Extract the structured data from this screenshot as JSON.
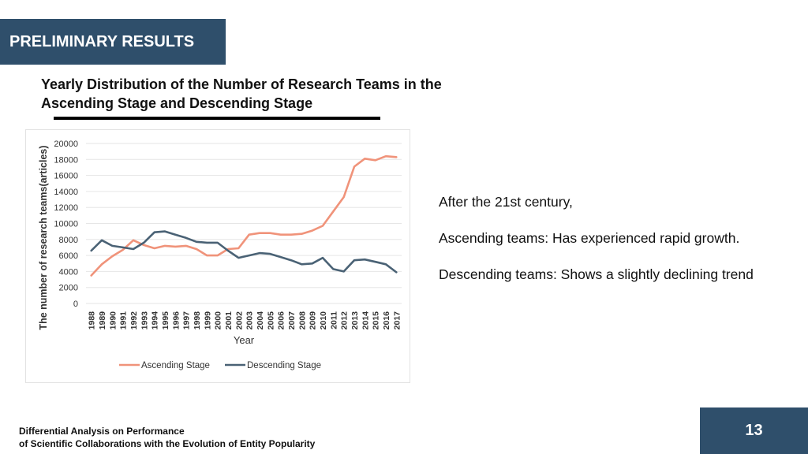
{
  "slide": {
    "section_title": "PRELIMINARY RESULTS",
    "heading_line1": "Yearly Distribution of the Number of Research Teams in the",
    "heading_line2": "Ascending Stage and Descending Stage",
    "notes": {
      "intro": "After the 21st century,",
      "ascending": "Ascending teams:  Has experienced rapid growth.",
      "descending": "Descending teams:  Shows a slightly declining trend"
    },
    "footer_line1": "Differential Analysis on Performance",
    "footer_line2": "of Scientific Collaborations with the Evolution of Entity Popularity",
    "page_number": "13"
  },
  "chart_data": {
    "type": "line",
    "title": "",
    "xlabel": "Year",
    "ylabel": "The number of research teams(articles)",
    "ylim": [
      0,
      20000
    ],
    "yticks": [
      0,
      2000,
      4000,
      6000,
      8000,
      10000,
      12000,
      14000,
      16000,
      18000,
      20000
    ],
    "grid": true,
    "legend_position": "bottom",
    "x": [
      "1988",
      "1989",
      "1990",
      "1991",
      "1992",
      "1993",
      "1994",
      "1995",
      "1996",
      "1997",
      "1998",
      "1999",
      "2000",
      "2001",
      "2002",
      "2003",
      "2004",
      "2005",
      "2006",
      "2007",
      "2008",
      "2009",
      "2010",
      "2011",
      "2012",
      "2013",
      "2014",
      "2015",
      "2016",
      "2017"
    ],
    "series": [
      {
        "name": "Ascending Stage",
        "color": "#f0937a",
        "values": [
          3500,
          4900,
          5900,
          6700,
          7900,
          7300,
          6900,
          7200,
          7100,
          7200,
          6800,
          6000,
          6000,
          6800,
          6900,
          8600,
          8800,
          8800,
          8600,
          8600,
          8700,
          9100,
          9700,
          11500,
          13300,
          17100,
          18100,
          17900,
          18400,
          18300
        ]
      },
      {
        "name": "Descending Stage",
        "color": "#4a6275",
        "values": [
          6600,
          7900,
          7200,
          7000,
          6800,
          7600,
          8900,
          9000,
          8600,
          8200,
          7700,
          7600,
          7600,
          6600,
          5700,
          6000,
          6300,
          6200,
          5800,
          5400,
          4900,
          5000,
          5700,
          4300,
          4000,
          5400,
          5500,
          5200,
          4900,
          3900
        ]
      }
    ]
  }
}
